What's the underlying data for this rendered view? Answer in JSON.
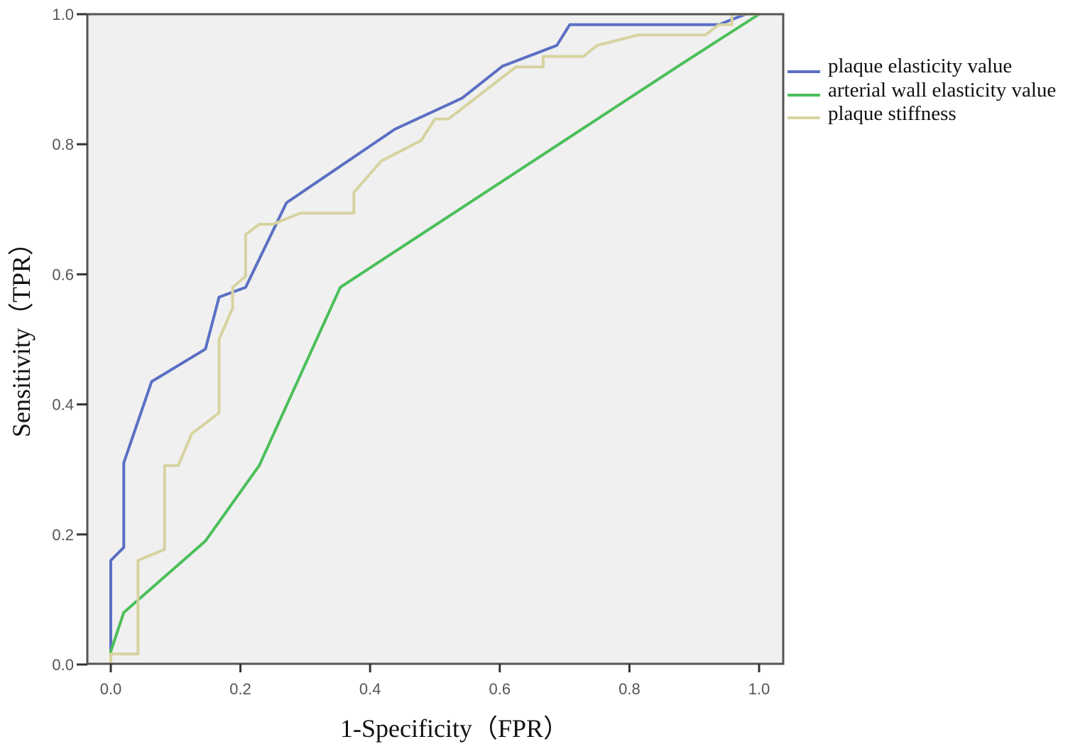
{
  "chart_data": {
    "type": "line",
    "title": "",
    "xlabel": "1-Specificity（FPR）",
    "ylabel": "Sensitivity（TPR）",
    "xlim": [
      0,
      1.0
    ],
    "ylim": [
      0,
      1.0
    ],
    "x_ticks": [
      "0.0",
      "0.2",
      "0.4",
      "0.6",
      "0.8",
      "1.0"
    ],
    "y_ticks": [
      "0.0",
      "0.2",
      "0.4",
      "0.6",
      "0.8",
      "1.0"
    ],
    "grid": false,
    "plot_background": "#f0f0f0",
    "legend_position": "right-top, outside plot",
    "series": [
      {
        "name": "plaque elasticity value",
        "color": "#5b6fc4",
        "points": [
          [
            0,
            0
          ],
          [
            0,
            0.16
          ],
          [
            0.02,
            0.18
          ],
          [
            0.02,
            0.31
          ],
          [
            0.063,
            0.435
          ],
          [
            0.146,
            0.485
          ],
          [
            0.167,
            0.565
          ],
          [
            0.208,
            0.58
          ],
          [
            0.271,
            0.71
          ],
          [
            0.438,
            0.823
          ],
          [
            0.542,
            0.871
          ],
          [
            0.604,
            0.92
          ],
          [
            0.688,
            0.952
          ],
          [
            0.708,
            0.984
          ],
          [
            0.938,
            0.984
          ],
          [
            0.979,
            1.0
          ],
          [
            1.0,
            1.0
          ]
        ]
      },
      {
        "name": "arterial wall elasticity value",
        "color": "#4cbf5a",
        "points": [
          [
            0,
            0
          ],
          [
            0,
            0.02
          ],
          [
            0.02,
            0.08
          ],
          [
            0.146,
            0.19
          ],
          [
            0.229,
            0.306
          ],
          [
            0.354,
            0.58
          ],
          [
            0.875,
            0.92
          ],
          [
            1.0,
            1.0
          ]
        ]
      },
      {
        "name": "plaque stiffness",
        "color": "#d6d3a0",
        "points": [
          [
            0,
            0
          ],
          [
            0,
            0.016
          ],
          [
            0.042,
            0.016
          ],
          [
            0.042,
            0.16
          ],
          [
            0.083,
            0.177
          ],
          [
            0.083,
            0.306
          ],
          [
            0.104,
            0.306
          ],
          [
            0.125,
            0.355
          ],
          [
            0.167,
            0.387
          ],
          [
            0.167,
            0.5
          ],
          [
            0.188,
            0.548
          ],
          [
            0.188,
            0.58
          ],
          [
            0.208,
            0.597
          ],
          [
            0.208,
            0.661
          ],
          [
            0.229,
            0.677
          ],
          [
            0.25,
            0.677
          ],
          [
            0.292,
            0.694
          ],
          [
            0.375,
            0.694
          ],
          [
            0.375,
            0.726
          ],
          [
            0.417,
            0.774
          ],
          [
            0.479,
            0.806
          ],
          [
            0.5,
            0.839
          ],
          [
            0.521,
            0.839
          ],
          [
            0.604,
            0.903
          ],
          [
            0.625,
            0.919
          ],
          [
            0.667,
            0.919
          ],
          [
            0.667,
            0.935
          ],
          [
            0.729,
            0.935
          ],
          [
            0.75,
            0.952
          ],
          [
            0.813,
            0.968
          ],
          [
            0.917,
            0.968
          ],
          [
            0.938,
            0.984
          ],
          [
            0.958,
            0.984
          ],
          [
            0.958,
            1.0
          ],
          [
            1.0,
            1.0
          ]
        ]
      }
    ]
  },
  "legend": {
    "items": [
      {
        "label": "plaque elasticity value",
        "color": "#5b6fc4"
      },
      {
        "label": "arterial wall elasticity value",
        "color": "#4cbf5a"
      },
      {
        "label": "plaque stiffness",
        "color": "#d6d3a0"
      }
    ]
  }
}
